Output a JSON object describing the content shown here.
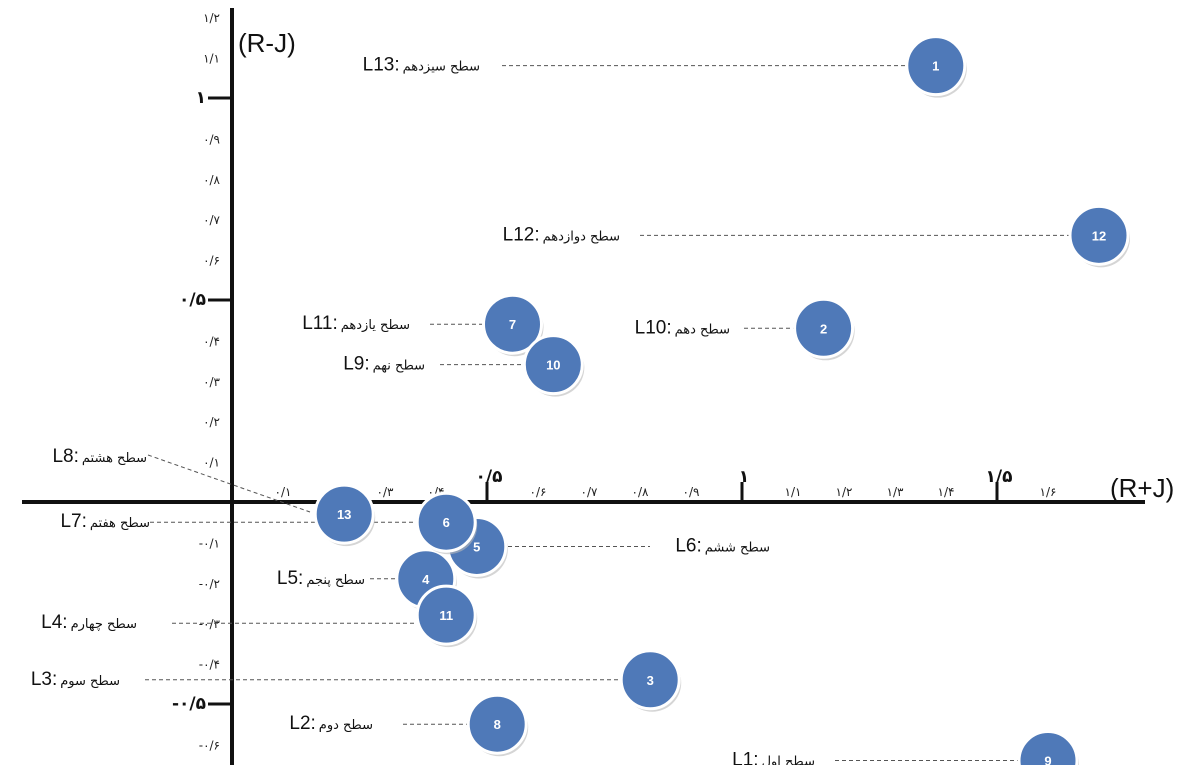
{
  "chart_data": {
    "type": "scatter",
    "xlabel": "(R+J)",
    "ylabel": "(R-J)",
    "xlim": [
      0,
      1.75
    ],
    "ylim": [
      -0.65,
      1.25
    ],
    "x_ticks": [
      {
        "value": 0.1,
        "label": "۰/۱"
      },
      {
        "value": 0.3,
        "label": "۰/۳"
      },
      {
        "value": 0.4,
        "label": "۰/۴"
      },
      {
        "value": 0.5,
        "label": "۰/۵"
      },
      {
        "value": 0.6,
        "label": "۰/۶"
      },
      {
        "value": 0.7,
        "label": "۰/۷"
      },
      {
        "value": 0.8,
        "label": "۰/۸"
      },
      {
        "value": 0.9,
        "label": "۰/۹"
      },
      {
        "value": 1,
        "label": "۱"
      },
      {
        "value": 1.1,
        "label": "۱/۱"
      },
      {
        "value": 1.2,
        "label": "۱/۲"
      },
      {
        "value": 1.3,
        "label": "۱/۳"
      },
      {
        "value": 1.4,
        "label": "۱/۴"
      },
      {
        "value": 1.5,
        "label": "۱/۵"
      },
      {
        "value": 1.6,
        "label": "۱/۶"
      }
    ],
    "x_major": [
      0.5,
      1,
      1.5
    ],
    "y_ticks": [
      {
        "value": 1.2,
        "label": "۱/۲"
      },
      {
        "value": 1.1,
        "label": "۱/۱"
      },
      {
        "value": 1,
        "label": "۱"
      },
      {
        "value": 0.9,
        "label": "۰/۹"
      },
      {
        "value": 0.8,
        "label": "۰/۸"
      },
      {
        "value": 0.7,
        "label": "۰/۷"
      },
      {
        "value": 0.6,
        "label": "۰/۶"
      },
      {
        "value": 0.5,
        "label": "۰/۵"
      },
      {
        "value": 0.4,
        "label": "۰/۴"
      },
      {
        "value": 0.3,
        "label": "۰/۳"
      },
      {
        "value": 0.2,
        "label": "۰/۲"
      },
      {
        "value": 0.1,
        "label": "۰/۱"
      },
      {
        "value": -0.1,
        "label": "-۰/۱"
      },
      {
        "value": -0.2,
        "label": "-۰/۲"
      },
      {
        "value": -0.3,
        "label": "-۰/۳"
      },
      {
        "value": -0.4,
        "label": "-۰/۴"
      },
      {
        "value": -0.5,
        "label": "-۰/۵"
      },
      {
        "value": -0.6,
        "label": "-۰/۶"
      }
    ],
    "y_major": [
      1,
      0.5,
      -0.5
    ],
    "points": [
      {
        "id": "1",
        "x": 1.38,
        "y": 1.08
      },
      {
        "id": "2",
        "x": 1.16,
        "y": 0.43
      },
      {
        "id": "3",
        "x": 0.82,
        "y": -0.44
      },
      {
        "id": "4",
        "x": 0.38,
        "y": -0.19
      },
      {
        "id": "5",
        "x": 0.48,
        "y": -0.11
      },
      {
        "id": "6",
        "x": 0.42,
        "y": -0.05
      },
      {
        "id": "7",
        "x": 0.55,
        "y": 0.44
      },
      {
        "id": "8",
        "x": 0.52,
        "y": -0.55
      },
      {
        "id": "9",
        "x": 1.6,
        "y": -0.64
      },
      {
        "id": "10",
        "x": 0.63,
        "y": 0.34
      },
      {
        "id": "11",
        "x": 0.42,
        "y": -0.28
      },
      {
        "id": "12",
        "x": 1.7,
        "y": 0.66
      },
      {
        "id": "13",
        "x": 0.22,
        "y": -0.03
      }
    ],
    "levels": [
      {
        "id": "L13:",
        "name": "سطح سیزدهم",
        "y": 1.08
      },
      {
        "id": "L12:",
        "name": "سطح دوازدهم",
        "y": 0.66
      },
      {
        "id": "L11:",
        "name": "سطح یازدهم",
        "y": 0.44
      },
      {
        "id": "L10:",
        "name": "سطح دهم",
        "y": 0.43
      },
      {
        "id": "L9:",
        "name": "سطح نهم",
        "y": 0.34
      },
      {
        "id": "L8:",
        "name": "سطح هشتم",
        "y": 0.12
      },
      {
        "id": "L7:",
        "name": "سطح هفتم",
        "y": -0.05
      },
      {
        "id": "L6:",
        "name": "سطح ششم",
        "y": -0.11
      },
      {
        "id": "L5:",
        "name": "سطح پنجم",
        "y": -0.19
      },
      {
        "id": "L4:",
        "name": "سطح چهارم",
        "y": -0.3
      },
      {
        "id": "L3:",
        "name": "سطح سوم",
        "y": -0.44
      },
      {
        "id": "L2:",
        "name": "سطح دوم",
        "y": -0.55
      },
      {
        "id": "L1:",
        "name": "سطح اول",
        "y": -0.64
      }
    ],
    "colors": {
      "point_fill": "#4f79b8",
      "point_stroke": "#ffffff",
      "axis": "#111111",
      "leader": "#555555"
    }
  }
}
